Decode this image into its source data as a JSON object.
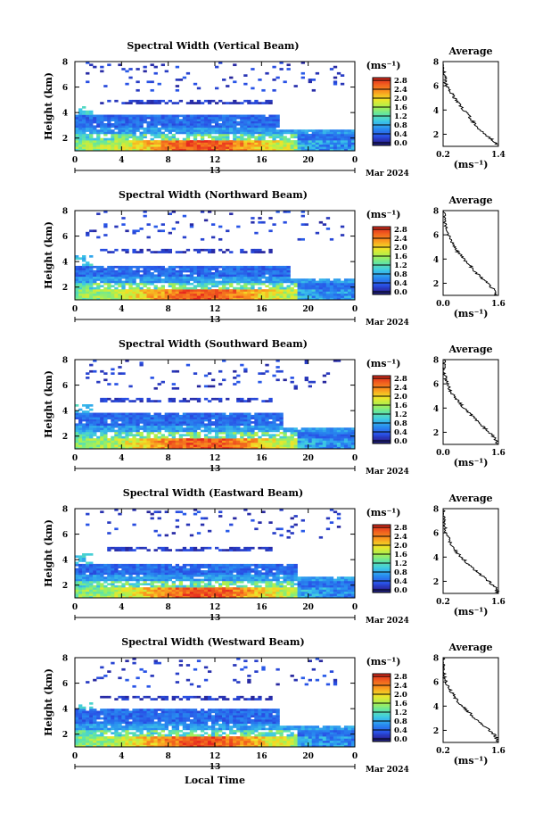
{
  "chart_data": [
    {
      "type": "heatmap",
      "title": "Spectral Width (Vertical Beam)",
      "ylabel": "Height (km)",
      "xticks": [
        "0",
        "4",
        "8",
        "12",
        "16",
        "20",
        "0"
      ],
      "yticks": [
        "2",
        "4",
        "6",
        "8"
      ],
      "date_day": "13",
      "date_label": "Mar 2024",
      "xlim": [
        0,
        24
      ],
      "ylim": [
        1,
        8
      ],
      "colorbar": {
        "unit": "(ms⁻¹)",
        "ticks": [
          "0.0",
          "0.4",
          "0.8",
          "1.2",
          "1.6",
          "2.0",
          "2.4",
          "2.8"
        ]
      },
      "main_layer_top_km": 3.9,
      "main_layer_end_hr": 17.5,
      "average": {
        "title": "Average",
        "xticks": [
          "0.2",
          "1.4"
        ],
        "xlim": [
          0.2,
          1.4
        ],
        "yticks": [
          "2",
          "4",
          "6",
          "8"
        ],
        "ylim": [
          1,
          8
        ],
        "x": [
          1.4,
          1.32,
          1.18,
          1.05,
          0.95,
          0.86,
          0.78,
          0.7,
          0.6,
          0.52,
          0.45,
          0.38,
          0.3,
          0.25,
          0.24,
          0.22,
          0.2,
          0.2
        ],
        "y": [
          1.0,
          1.4,
          1.8,
          2.2,
          2.6,
          3.0,
          3.4,
          3.8,
          4.2,
          4.6,
          5.0,
          5.4,
          5.8,
          6.2,
          6.6,
          7.0,
          7.4,
          8.0
        ],
        "xlabel": "(ms⁻¹)"
      }
    },
    {
      "type": "heatmap",
      "title": "Spectral Width (Northward Beam)",
      "ylabel": "Height (km)",
      "xticks": [
        "0",
        "4",
        "8",
        "12",
        "16",
        "20",
        "0"
      ],
      "yticks": [
        "2",
        "4",
        "6",
        "8"
      ],
      "date_day": "13",
      "date_label": "Mar 2024",
      "xlim": [
        0,
        24
      ],
      "ylim": [
        1,
        8
      ],
      "colorbar": {
        "unit": "(ms⁻¹)",
        "ticks": [
          "0.0",
          "0.4",
          "0.8",
          "1.2",
          "1.6",
          "2.0",
          "2.4",
          "2.8"
        ]
      },
      "main_layer_top_km": 3.6,
      "main_layer_end_hr": 18.5,
      "average": {
        "title": "Average",
        "xticks": [
          "0.0",
          "1.6"
        ],
        "xlim": [
          0.0,
          1.6
        ],
        "yticks": [
          "2",
          "4",
          "6",
          "8"
        ],
        "ylim": [
          1,
          8
        ],
        "x": [
          1.55,
          1.5,
          1.35,
          1.2,
          1.05,
          0.92,
          0.8,
          0.66,
          0.55,
          0.42,
          0.33,
          0.25,
          0.18,
          0.12,
          0.1,
          0.06,
          0.04,
          0.02
        ],
        "y": [
          1.0,
          1.4,
          1.8,
          2.2,
          2.6,
          3.0,
          3.4,
          3.8,
          4.2,
          4.6,
          5.0,
          5.4,
          5.8,
          6.2,
          6.6,
          7.0,
          7.4,
          8.0
        ],
        "xlabel": "(ms⁻¹)"
      }
    },
    {
      "type": "heatmap",
      "title": "Spectral Width (Southward Beam)",
      "ylabel": "Height (km)",
      "xticks": [
        "0",
        "4",
        "8",
        "12",
        "16",
        "20",
        "0"
      ],
      "yticks": [
        "2",
        "4",
        "6",
        "8"
      ],
      "date_day": "13",
      "date_label": "Mar 2024",
      "xlim": [
        0,
        24
      ],
      "ylim": [
        1,
        8
      ],
      "colorbar": {
        "unit": "(ms⁻¹)",
        "ticks": [
          "0.0",
          "0.4",
          "0.8",
          "1.2",
          "1.6",
          "2.0",
          "2.4",
          "2.8"
        ]
      },
      "main_layer_top_km": 3.9,
      "main_layer_end_hr": 18.0,
      "average": {
        "title": "Average",
        "xticks": [
          "0.0",
          "1.6"
        ],
        "xlim": [
          0.0,
          1.6
        ],
        "yticks": [
          "2",
          "4",
          "6",
          "8"
        ],
        "ylim": [
          1,
          8
        ],
        "x": [
          1.55,
          1.52,
          1.4,
          1.25,
          1.1,
          0.95,
          0.82,
          0.68,
          0.55,
          0.42,
          0.32,
          0.22,
          0.15,
          0.1,
          0.06,
          0.03,
          0.02,
          0.02
        ],
        "y": [
          1.0,
          1.4,
          1.8,
          2.2,
          2.6,
          3.0,
          3.4,
          3.8,
          4.2,
          4.6,
          5.0,
          5.4,
          5.8,
          6.2,
          6.6,
          7.0,
          7.4,
          8.0
        ],
        "xlabel": "(ms⁻¹)"
      }
    },
    {
      "type": "heatmap",
      "title": "Spectral Width (Eastward Beam)",
      "ylabel": "Height (km)",
      "xticks": [
        "0",
        "4",
        "8",
        "12",
        "16",
        "20",
        "0"
      ],
      "yticks": [
        "2",
        "4",
        "6",
        "8"
      ],
      "date_day": "13",
      "date_label": "Mar 2024",
      "xlim": [
        0,
        24
      ],
      "ylim": [
        1,
        8
      ],
      "colorbar": {
        "unit": "(ms⁻¹)",
        "ticks": [
          "0.0",
          "0.4",
          "0.8",
          "1.2",
          "1.6",
          "2.0",
          "2.4",
          "2.8"
        ]
      },
      "main_layer_top_km": 3.7,
      "main_layer_end_hr": 19.0,
      "average": {
        "title": "Average",
        "xticks": [
          "0.2",
          "1.6"
        ],
        "xlim": [
          0.2,
          1.6
        ],
        "yticks": [
          "2",
          "4",
          "6",
          "8"
        ],
        "ylim": [
          1,
          8
        ],
        "x": [
          1.58,
          1.55,
          1.42,
          1.28,
          1.12,
          0.98,
          0.85,
          0.72,
          0.6,
          0.5,
          0.42,
          0.35,
          0.3,
          0.25,
          0.24,
          0.22,
          0.21,
          0.2
        ],
        "y": [
          1.0,
          1.4,
          1.8,
          2.2,
          2.6,
          3.0,
          3.4,
          3.8,
          4.2,
          4.6,
          5.0,
          5.4,
          5.8,
          6.2,
          6.6,
          7.0,
          7.4,
          8.0
        ],
        "xlabel": "(ms⁻¹)"
      }
    },
    {
      "type": "heatmap",
      "title": "Spectral Width (Westward Beam)",
      "ylabel": "Height (km)",
      "xlabel": "Local Time",
      "xticks": [
        "0",
        "4",
        "8",
        "12",
        "16",
        "20",
        "0"
      ],
      "yticks": [
        "2",
        "4",
        "6",
        "8"
      ],
      "date_day": "13",
      "date_label": "Mar 2024",
      "xlim": [
        0,
        24
      ],
      "ylim": [
        1,
        8
      ],
      "colorbar": {
        "unit": "(ms⁻¹)",
        "ticks": [
          "0.0",
          "0.4",
          "0.8",
          "1.2",
          "1.6",
          "2.0",
          "2.4",
          "2.8"
        ]
      },
      "main_layer_top_km": 4.0,
      "main_layer_end_hr": 17.5,
      "average": {
        "title": "Average",
        "xticks": [
          "0.2",
          "1.6"
        ],
        "xlim": [
          0.2,
          1.6
        ],
        "yticks": [
          "2",
          "4",
          "6",
          "8"
        ],
        "ylim": [
          1,
          8
        ],
        "x": [
          1.58,
          1.55,
          1.45,
          1.3,
          1.15,
          1.0,
          0.88,
          0.75,
          0.62,
          0.52,
          0.44,
          0.36,
          0.3,
          0.25,
          0.23,
          0.21,
          0.2,
          0.2
        ],
        "y": [
          1.0,
          1.4,
          1.8,
          2.2,
          2.6,
          3.0,
          3.4,
          3.8,
          4.2,
          4.6,
          5.0,
          5.4,
          5.8,
          6.2,
          6.6,
          7.0,
          7.4,
          8.0
        ],
        "xlabel": "(ms⁻¹)"
      }
    }
  ]
}
